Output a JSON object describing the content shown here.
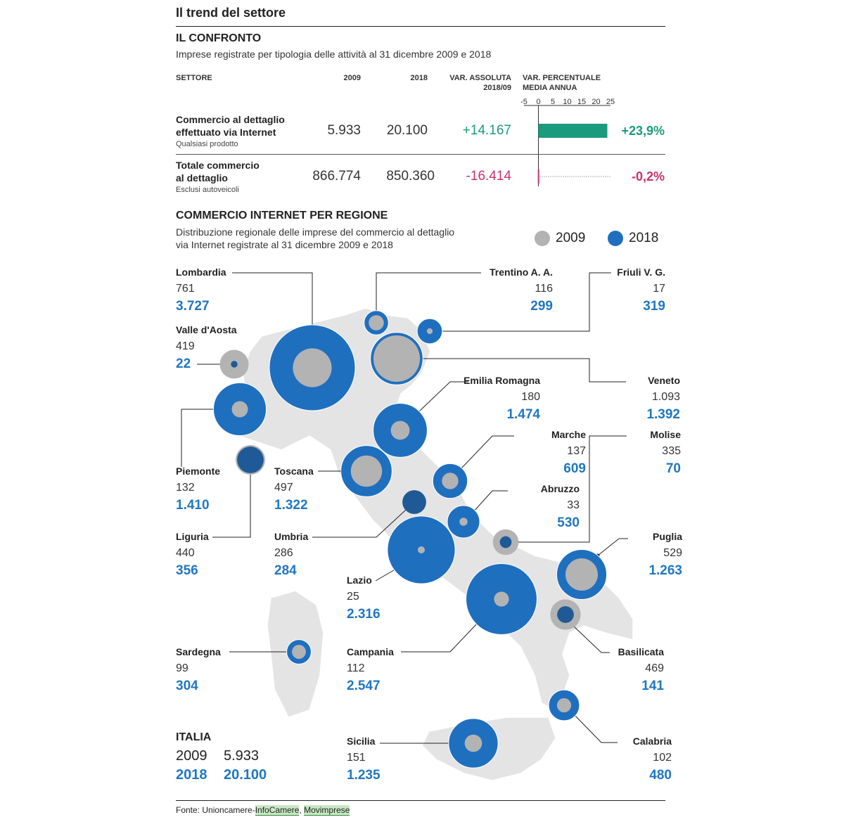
{
  "header": {
    "title": "Il trend del settore"
  },
  "compare": {
    "title": "IL CONFRONTO",
    "subtitle": "Imprese registrate per tipologia delle attività al 31 dicembre 2009 e 2018",
    "col_sector": "SETTORE",
    "col_2009": "2009",
    "col_2018": "2018",
    "col_var_abs_1": "VAR. ASSOLUTA",
    "col_var_abs_2": "2018/09",
    "col_var_pct_1": "VAR. PERCENTUALE",
    "col_var_pct_2": "MEDIA ANNUA",
    "axis_ticks": [
      "-5",
      "0",
      "5",
      "10",
      "15",
      "20",
      "25"
    ],
    "rows": [
      {
        "label1": "Commercio al dettaglio",
        "label2": "effettuato via Internet",
        "note": "Qualsiasi prodotto",
        "v2009": "5.933",
        "v2018": "20.100",
        "var_abs": "+14.167",
        "var_pct_text": "+23,9%"
      },
      {
        "label1": "Totale commercio",
        "label2": "al dettaglio",
        "note": "Esclusi autoveicoli",
        "v2009": "866.774",
        "v2018": "850.360",
        "var_abs": "-16.414",
        "var_pct_text": "-0,2%"
      }
    ]
  },
  "chart_data": [
    {
      "type": "bar",
      "orientation": "horizontal",
      "title": "VAR. PERCENTUALE MEDIA ANNUA",
      "categories": [
        "Commercio al dettaglio effettuato via Internet",
        "Totale commercio al dettaglio"
      ],
      "values": [
        23.9,
        -0.2
      ],
      "xlim": [
        -5,
        25
      ],
      "xticks": [
        -5,
        0,
        5,
        10,
        15,
        20,
        25
      ],
      "colors": [
        "#1a9b7d",
        "#c8316d"
      ]
    },
    {
      "type": "scatter",
      "subtype": "bubble-map",
      "title": "COMMERCIO INTERNET PER REGIONE",
      "subtitle1": "Distribuzione regionale delle imprese del commercio al dettaglio",
      "subtitle2": "via Internet registrate al 31 dicembre 2009 e 2018",
      "legend": [
        {
          "name": "2009",
          "color": "#b3b3b3"
        },
        {
          "name": "2018",
          "color": "#1f6fbf"
        }
      ],
      "legend_position": "top-right",
      "regions": [
        {
          "name": "Lombardia",
          "v2009": 761,
          "v2018": 3727,
          "t2009": "761",
          "t2018": "3.727"
        },
        {
          "name": "Trentino A. A.",
          "v2009": 116,
          "v2018": 299,
          "t2009": "116",
          "t2018": "299"
        },
        {
          "name": "Friuli V. G.",
          "v2009": 17,
          "v2018": 319,
          "t2009": "17",
          "t2018": "319"
        },
        {
          "name": "Valle d'Aosta",
          "v2009": 419,
          "v2018": 22,
          "t2009": "419",
          "t2018": "22"
        },
        {
          "name": "Emilia Romagna",
          "v2009": 180,
          "v2018": 1474,
          "t2009": "180",
          "t2018": "1.474"
        },
        {
          "name": "Veneto",
          "v2009": 1093,
          "v2018": 1392,
          "t2009": "1.093",
          "t2018": "1.392"
        },
        {
          "name": "Marche",
          "v2009": 137,
          "v2018": 609,
          "t2009": "137",
          "t2018": "609"
        },
        {
          "name": "Molise",
          "v2009": 335,
          "v2018": 70,
          "t2009": "335",
          "t2018": "70"
        },
        {
          "name": "Piemonte",
          "v2009": 132,
          "v2018": 1410,
          "t2009": "132",
          "t2018": "1.410"
        },
        {
          "name": "Toscana",
          "v2009": 497,
          "v2018": 1322,
          "t2009": "497",
          "t2018": "1.322"
        },
        {
          "name": "Abruzzo",
          "v2009": 33,
          "v2018": 530,
          "t2009": "33",
          "t2018": "530"
        },
        {
          "name": "Liguria",
          "v2009": 440,
          "v2018": 356,
          "t2009": "440",
          "t2018": "356"
        },
        {
          "name": "Umbria",
          "v2009": 286,
          "v2018": 284,
          "t2009": "286",
          "t2018": "284"
        },
        {
          "name": "Puglia",
          "v2009": 529,
          "v2018": 1263,
          "t2009": "529",
          "t2018": "1.263"
        },
        {
          "name": "Lazio",
          "v2009": 25,
          "v2018": 2316,
          "t2009": "25",
          "t2018": "2.316"
        },
        {
          "name": "Sardegna",
          "v2009": 99,
          "v2018": 304,
          "t2009": "99",
          "t2018": "304"
        },
        {
          "name": "Campania",
          "v2009": 112,
          "v2018": 2547,
          "t2009": "112",
          "t2018": "2.547"
        },
        {
          "name": "Basilicata",
          "v2009": 469,
          "v2018": 141,
          "t2009": "469",
          "t2018": "141"
        },
        {
          "name": "Sicilia",
          "v2009": 151,
          "v2018": 1235,
          "t2009": "151",
          "t2018": "1.235"
        },
        {
          "name": "Calabria",
          "v2009": 102,
          "v2018": 480,
          "t2009": "102",
          "t2018": "480"
        }
      ]
    }
  ],
  "italia": {
    "name": "ITALIA",
    "y2009": "2009",
    "v2009": "5.933",
    "y2018": "2018",
    "v2018": "20.100"
  },
  "source": {
    "prefix": "Fonte: Unioncamere-",
    "link1": "InfoCamere",
    "sep": ", ",
    "link2": "Movimprese"
  }
}
